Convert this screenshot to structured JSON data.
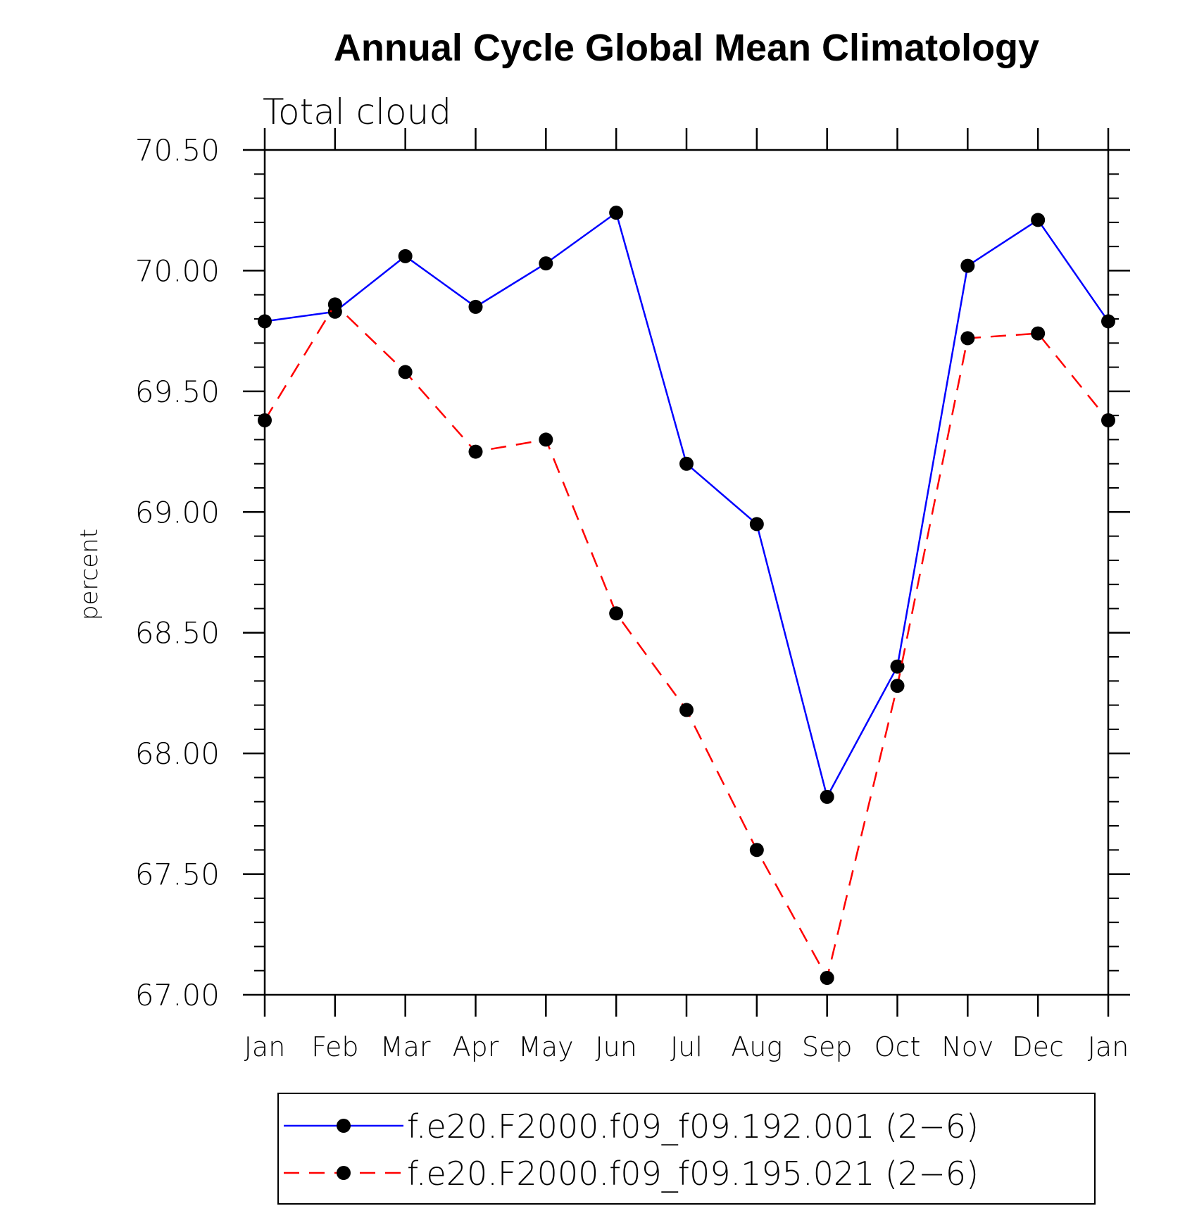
{
  "chart_data": {
    "type": "line",
    "title": "Annual Cycle Global Mean Climatology",
    "subtitle": "Total cloud",
    "xlabel": "",
    "ylabel": "percent",
    "categories": [
      "Jan",
      "Feb",
      "Mar",
      "Apr",
      "May",
      "Jun",
      "Jul",
      "Aug",
      "Sep",
      "Oct",
      "Nov",
      "Dec",
      "Jan"
    ],
    "yticks": [
      "67.00",
      "67.50",
      "68.00",
      "68.50",
      "69.00",
      "69.50",
      "70.00",
      "70.50"
    ],
    "ylim": [
      67.0,
      70.5
    ],
    "legend_position": "bottom",
    "series": [
      {
        "name": "f.e20.F2000.f09_f09.192.001 (2−6)",
        "color": "#0000ff",
        "style": "solid",
        "values": [
          69.79,
          69.83,
          70.06,
          69.85,
          70.03,
          70.24,
          69.2,
          68.95,
          67.82,
          68.36,
          70.02,
          70.21,
          69.79
        ]
      },
      {
        "name": "f.e20.F2000.f09_f09.195.021 (2−6)",
        "color": "#ff0000",
        "style": "dashed",
        "values": [
          69.38,
          69.86,
          69.58,
          69.25,
          69.3,
          68.58,
          68.18,
          67.6,
          67.07,
          68.28,
          69.72,
          69.74,
          69.38
        ]
      }
    ]
  }
}
